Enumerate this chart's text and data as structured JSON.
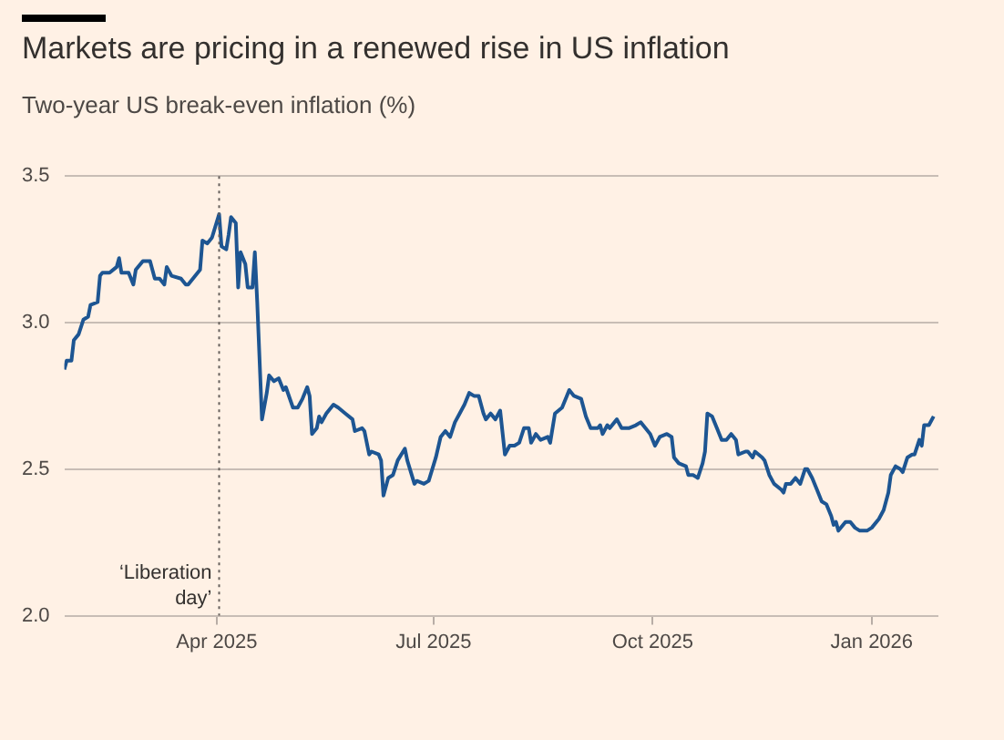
{
  "chart_data": {
    "type": "line",
    "title": "Markets are pricing in a renewed rise in US inflation",
    "subtitle": "Two-year US break-even inflation (%)",
    "x": [
      "2025-01-27",
      "2025-01-28",
      "2025-01-30",
      "2025-01-31",
      "2025-02-02",
      "2025-02-04",
      "2025-02-06",
      "2025-02-07",
      "2025-02-10",
      "2025-02-11",
      "2025-02-12",
      "2025-02-15",
      "2025-02-18",
      "2025-02-19",
      "2025-02-20",
      "2025-02-23",
      "2025-02-25",
      "2025-02-26",
      "2025-03-01",
      "2025-03-04",
      "2025-03-06",
      "2025-03-08",
      "2025-03-10",
      "2025-03-11",
      "2025-03-13",
      "2025-03-17",
      "2025-03-19",
      "2025-03-20",
      "2025-03-23",
      "2025-03-25",
      "2025-03-26",
      "2025-03-28",
      "2025-03-30",
      "2025-04-02",
      "2025-04-03",
      "2025-04-05",
      "2025-04-06",
      "2025-04-07",
      "2025-04-09",
      "2025-04-10",
      "2025-04-11",
      "2025-04-13",
      "2025-04-14",
      "2025-04-16",
      "2025-04-17",
      "2025-04-18",
      "2025-04-20",
      "2025-04-22",
      "2025-04-23",
      "2025-04-25",
      "2025-04-27",
      "2025-04-29",
      "2025-04-30",
      "2025-05-03",
      "2025-05-05",
      "2025-05-07",
      "2025-05-09",
      "2025-05-10",
      "2025-05-11",
      "2025-05-13",
      "2025-05-14",
      "2025-05-15",
      "2025-05-17",
      "2025-05-20",
      "2025-05-22",
      "2025-05-25",
      "2025-05-28",
      "2025-05-29",
      "2025-06-01",
      "2025-06-02",
      "2025-06-04",
      "2025-06-05",
      "2025-06-08",
      "2025-06-09",
      "2025-06-10",
      "2025-06-12",
      "2025-06-14",
      "2025-06-16",
      "2025-06-19",
      "2025-06-20",
      "2025-06-23",
      "2025-06-24",
      "2025-06-27",
      "2025-06-29",
      "2025-07-02",
      "2025-07-04",
      "2025-07-06",
      "2025-07-08",
      "2025-07-10",
      "2025-07-12",
      "2025-07-14",
      "2025-07-16",
      "2025-07-18",
      "2025-07-20",
      "2025-07-22",
      "2025-07-23",
      "2025-07-25",
      "2025-07-27",
      "2025-07-29",
      "2025-07-31",
      "2025-08-02",
      "2025-08-04",
      "2025-08-06",
      "2025-08-08",
      "2025-08-10",
      "2025-08-11",
      "2025-08-13",
      "2025-08-15",
      "2025-08-18",
      "2025-08-19",
      "2025-08-21",
      "2025-08-24",
      "2025-08-26",
      "2025-08-27",
      "2025-08-29",
      "2025-09-01",
      "2025-09-03",
      "2025-09-05",
      "2025-09-08",
      "2025-09-09",
      "2025-09-10",
      "2025-09-12",
      "2025-09-13",
      "2025-09-16",
      "2025-09-18",
      "2025-09-21",
      "2025-09-24",
      "2025-09-26",
      "2025-09-28",
      "2025-09-30",
      "2025-10-02",
      "2025-10-04",
      "2025-10-07",
      "2025-10-09",
      "2025-10-10",
      "2025-10-12",
      "2025-10-15",
      "2025-10-16",
      "2025-10-18",
      "2025-10-20",
      "2025-10-22",
      "2025-10-23",
      "2025-10-24",
      "2025-10-26",
      "2025-10-28",
      "2025-10-30",
      "2025-11-01",
      "2025-11-03",
      "2025-11-05",
      "2025-11-06",
      "2025-11-09",
      "2025-11-10",
      "2025-11-12",
      "2025-11-13",
      "2025-11-16",
      "2025-11-17",
      "2025-11-19",
      "2025-11-21",
      "2025-11-24",
      "2025-11-25",
      "2025-11-26",
      "2025-11-28",
      "2025-11-30",
      "2025-12-02",
      "2025-12-04",
      "2025-12-05",
      "2025-12-07",
      "2025-12-09",
      "2025-12-11",
      "2025-12-13",
      "2025-12-15",
      "2025-12-16",
      "2025-12-17",
      "2025-12-18",
      "2025-12-21",
      "2025-12-23",
      "2025-12-25",
      "2025-12-27",
      "2025-12-30",
      "2026-01-01",
      "2026-01-04",
      "2026-01-06",
      "2026-01-08",
      "2026-01-09",
      "2026-01-11",
      "2026-01-13",
      "2026-01-14",
      "2026-01-16",
      "2026-01-18",
      "2026-01-19",
      "2026-01-21",
      "2026-01-22",
      "2026-01-23",
      "2026-01-25",
      "2026-01-27"
    ],
    "series": [
      {
        "color": "#1d5592",
        "values": [
          2.84,
          2.87,
          2.87,
          2.94,
          2.96,
          3.01,
          3.02,
          3.06,
          3.07,
          3.16,
          3.17,
          3.17,
          3.19,
          3.22,
          3.17,
          3.17,
          3.13,
          3.18,
          3.21,
          3.21,
          3.15,
          3.15,
          3.13,
          3.19,
          3.16,
          3.15,
          3.13,
          3.13,
          3.16,
          3.18,
          3.28,
          3.27,
          3.29,
          3.37,
          3.26,
          3.25,
          3.3,
          3.36,
          3.34,
          3.12,
          3.24,
          3.2,
          3.12,
          3.12,
          3.24,
          3.07,
          2.67,
          2.76,
          2.82,
          2.8,
          2.81,
          2.77,
          2.78,
          2.71,
          2.71,
          2.74,
          2.78,
          2.75,
          2.62,
          2.64,
          2.68,
          2.66,
          2.69,
          2.72,
          2.71,
          2.69,
          2.67,
          2.63,
          2.64,
          2.63,
          2.55,
          2.56,
          2.55,
          2.53,
          2.41,
          2.47,
          2.48,
          2.53,
          2.57,
          2.53,
          2.45,
          2.46,
          2.45,
          2.46,
          2.54,
          2.61,
          2.63,
          2.61,
          2.66,
          2.69,
          2.72,
          2.76,
          2.75,
          2.75,
          2.69,
          2.67,
          2.69,
          2.67,
          2.7,
          2.55,
          2.58,
          2.58,
          2.59,
          2.64,
          2.64,
          2.59,
          2.62,
          2.6,
          2.61,
          2.59,
          2.69,
          2.71,
          2.75,
          2.77,
          2.75,
          2.74,
          2.68,
          2.64,
          2.64,
          2.65,
          2.62,
          2.65,
          2.64,
          2.67,
          2.64,
          2.64,
          2.65,
          2.66,
          2.64,
          2.62,
          2.58,
          2.61,
          2.62,
          2.61,
          2.54,
          2.52,
          2.51,
          2.48,
          2.48,
          2.47,
          2.52,
          2.56,
          2.69,
          2.68,
          2.64,
          2.6,
          2.6,
          2.62,
          2.6,
          2.55,
          2.56,
          2.56,
          2.54,
          2.56,
          2.54,
          2.53,
          2.48,
          2.45,
          2.43,
          2.42,
          2.45,
          2.45,
          2.47,
          2.45,
          2.5,
          2.5,
          2.47,
          2.43,
          2.39,
          2.38,
          2.34,
          2.31,
          2.32,
          2.29,
          2.32,
          2.32,
          2.3,
          2.29,
          2.29,
          2.3,
          2.33,
          2.36,
          2.42,
          2.48,
          2.51,
          2.5,
          2.49,
          2.54,
          2.55,
          2.55,
          2.6,
          2.58,
          2.65,
          2.65,
          2.68
        ]
      }
    ],
    "xlim": [
      "2025-01-27",
      "2026-01-29"
    ],
    "xticks": [
      {
        "value": "2025-04-01",
        "label": "Apr 2025"
      },
      {
        "value": "2025-07-01",
        "label": "Jul 2025"
      },
      {
        "value": "2025-10-01",
        "label": "Oct 2025"
      },
      {
        "value": "2026-01-01",
        "label": "Jan 2026"
      }
    ],
    "ylim": [
      2,
      3.5
    ],
    "yticks": [
      {
        "value": 2,
        "label": "2.0"
      },
      {
        "value": 2.5,
        "label": "2.5"
      },
      {
        "value": 3,
        "label": "3.0"
      },
      {
        "value": 3.5,
        "label": "3.5"
      }
    ],
    "grid": "y",
    "legend": false,
    "marker": "none",
    "line_style": "solid",
    "ref_lines": [
      {
        "axis": "x",
        "value": "2025-04-02",
        "label": "‘Liberation day’",
        "color": "#66605c",
        "line_style": "dotted"
      }
    ]
  }
}
